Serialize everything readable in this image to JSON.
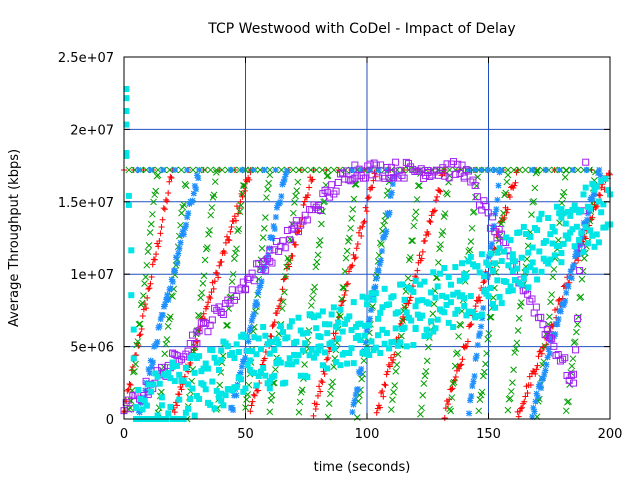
{
  "chart_data": {
    "type": "scatter",
    "title": "TCP Westwood with CoDel - Impact of Delay",
    "xlabel": "time (seconds)",
    "ylabel": "Average Throughput (kbps)",
    "xlim": [
      0,
      200
    ],
    "ylim": [
      0,
      25000000
    ],
    "xticks": [
      0,
      50,
      100,
      150,
      200
    ],
    "xtick_labels": [
      "0",
      "50",
      "100",
      "150",
      "200"
    ],
    "yticks": [
      0,
      5000000,
      10000000,
      15000000,
      20000000,
      25000000
    ],
    "ytick_labels": [
      "0",
      "5e+06",
      "1e+07",
      "1.5e+07",
      "2e+07",
      "2.5e+07"
    ],
    "grid": true,
    "series": [
      {
        "marker": "cross",
        "color": "#ff0000",
        "ceiling": 17200000,
        "cycles": [
          {
            "t0": 0,
            "t1": 20
          },
          {
            "t0": 20,
            "t1": 52
          },
          {
            "t0": 52,
            "t1": 78
          },
          {
            "t0": 78,
            "t1": 104
          },
          {
            "t0": 104,
            "t1": 132
          },
          {
            "t0": 132,
            "t1": 162
          },
          {
            "t0": 162,
            "t1": 200
          }
        ]
      },
      {
        "marker": "x",
        "color": "#00a000",
        "ceiling": 17200000,
        "cycles": [
          {
            "t0": 2,
            "t1": 14
          },
          {
            "t0": 14,
            "t1": 26
          },
          {
            "t0": 26,
            "t1": 38
          },
          {
            "t0": 38,
            "t1": 50
          },
          {
            "t0": 50,
            "t1": 60
          },
          {
            "t0": 60,
            "t1": 72
          },
          {
            "t0": 72,
            "t1": 84
          },
          {
            "t0": 84,
            "t1": 96
          },
          {
            "t0": 96,
            "t1": 110
          },
          {
            "t0": 110,
            "t1": 122
          },
          {
            "t0": 122,
            "t1": 134
          },
          {
            "t0": 134,
            "t1": 146
          },
          {
            "t0": 146,
            "t1": 158
          },
          {
            "t0": 158,
            "t1": 170
          },
          {
            "t0": 170,
            "t1": 182
          },
          {
            "t0": 182,
            "t1": 194
          }
        ]
      },
      {
        "marker": "star",
        "color": "#1e90ff",
        "ceiling": 17200000,
        "cycles": [
          {
            "t0": 6,
            "t1": 31
          },
          {
            "t0": 44,
            "t1": 67
          },
          {
            "t0": 94,
            "t1": 112
          },
          {
            "t0": 142,
            "t1": 155
          },
          {
            "t0": 168,
            "t1": 196
          }
        ]
      },
      {
        "marker": "square",
        "color": "#a020f0",
        "points": [
          [
            0,
            500000
          ],
          [
            10,
            2200000
          ],
          [
            20,
            4000000
          ],
          [
            30,
            5800000
          ],
          [
            40,
            7600000
          ],
          [
            50,
            9400000
          ],
          [
            60,
            11200000
          ],
          [
            70,
            13000000
          ],
          [
            80,
            14800000
          ],
          [
            90,
            16600000
          ],
          [
            95,
            17200000
          ],
          [
            110,
            17200000
          ],
          [
            125,
            17200000
          ],
          [
            140,
            17200000
          ],
          [
            185,
            2500000
          ],
          [
            190,
            17200000
          ]
        ]
      },
      {
        "marker": "filled-square",
        "color": "#00e5e5",
        "points": [
          [
            1,
            23500000
          ],
          [
            1,
            21300000
          ],
          [
            5,
            1500000
          ],
          [
            20,
            3000000
          ],
          [
            40,
            4400000
          ],
          [
            60,
            5600000
          ],
          [
            80,
            6600000
          ],
          [
            100,
            7500000
          ],
          [
            120,
            8600000
          ],
          [
            140,
            10000000
          ],
          [
            160,
            11800000
          ],
          [
            180,
            14000000
          ],
          [
            200,
            16000000
          ]
        ]
      }
    ]
  }
}
